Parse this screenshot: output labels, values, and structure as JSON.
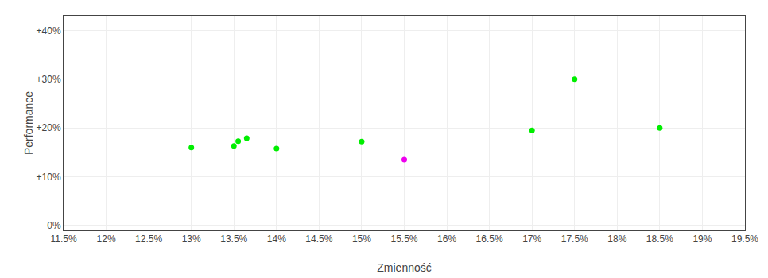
{
  "chart_data": {
    "type": "scatter",
    "xlabel": "Zmienność",
    "ylabel": "Performance",
    "series": [
      {
        "color": "#00ee00",
        "x": [
          13.0,
          13.5,
          13.55,
          13.65,
          14.0,
          15.0,
          17.0,
          17.5,
          18.5
        ],
        "values": [
          16.0,
          16.3,
          17.3,
          17.9,
          15.8,
          17.2,
          19.5,
          30.0,
          20.0
        ]
      },
      {
        "color": "#ee00ee",
        "x": [
          15.5
        ],
        "values": [
          13.5
        ]
      }
    ],
    "xlim": [
      11.5,
      19.5
    ],
    "ylim": [
      -1,
      43
    ],
    "xticks": [
      {
        "value": 11.5,
        "label": "11.5%"
      },
      {
        "value": 12.0,
        "label": "12%"
      },
      {
        "value": 12.5,
        "label": "12.5%"
      },
      {
        "value": 13.0,
        "label": "13%"
      },
      {
        "value": 13.5,
        "label": "13.5%"
      },
      {
        "value": 14.0,
        "label": "14%"
      },
      {
        "value": 14.5,
        "label": "14.5%"
      },
      {
        "value": 15.0,
        "label": "15%"
      },
      {
        "value": 15.5,
        "label": "15.5%"
      },
      {
        "value": 16.0,
        "label": "16%"
      },
      {
        "value": 16.5,
        "label": "16.5%"
      },
      {
        "value": 17.0,
        "label": "17%"
      },
      {
        "value": 17.5,
        "label": "17.5%"
      },
      {
        "value": 18.0,
        "label": "18%"
      },
      {
        "value": 18.5,
        "label": "18.5%"
      },
      {
        "value": 19.0,
        "label": "19%"
      },
      {
        "value": 19.5,
        "label": "19.5%"
      }
    ],
    "yticks": [
      {
        "value": 0,
        "label": "0%"
      },
      {
        "value": 10,
        "label": "+10%"
      },
      {
        "value": 20,
        "label": "+20%"
      },
      {
        "value": 30,
        "label": "+30%"
      },
      {
        "value": 40,
        "label": "+40%"
      }
    ],
    "grid": true
  }
}
